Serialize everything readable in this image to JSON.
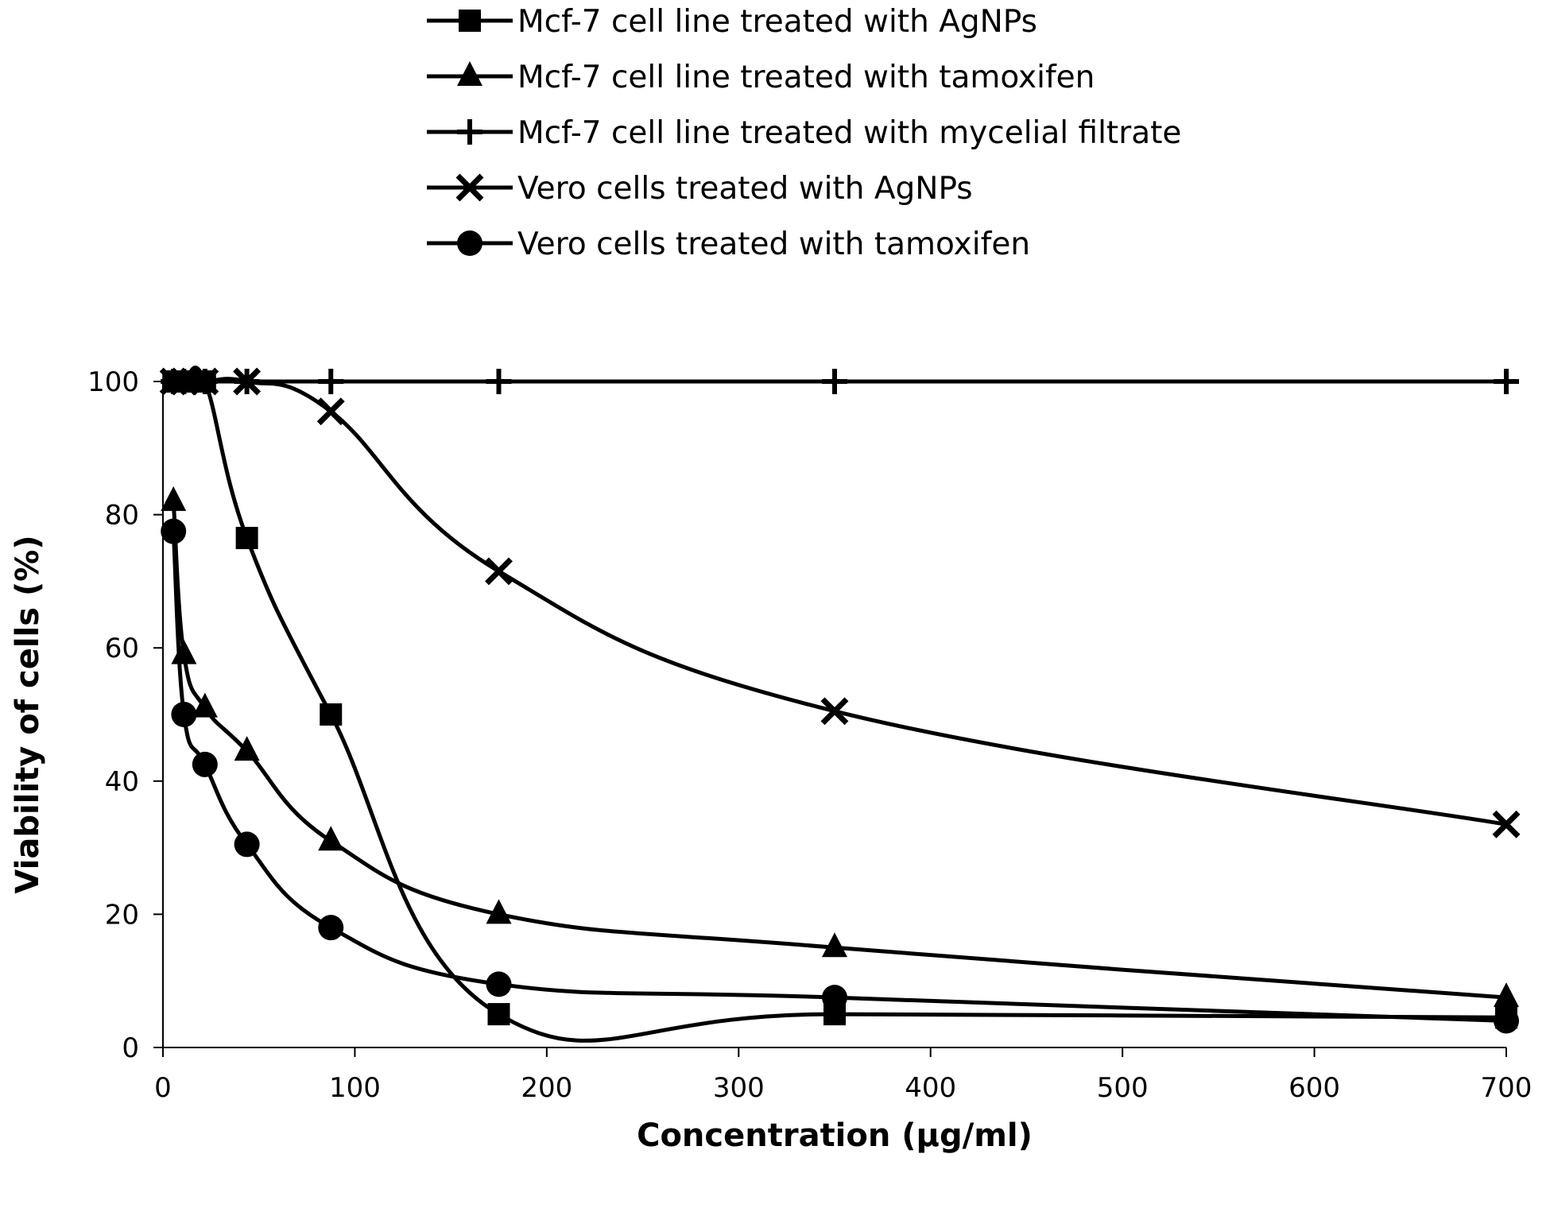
{
  "chart_data": {
    "type": "line",
    "title": "",
    "xlabel": "Concentration (µg/ml)",
    "ylabel": "Viability of cells (%)",
    "xlim": [
      0,
      700
    ],
    "ylim": [
      0,
      100
    ],
    "xticks": [
      0,
      100,
      200,
      300,
      400,
      500,
      600,
      700
    ],
    "yticks": [
      0,
      20,
      40,
      60,
      80,
      100
    ],
    "grid": false,
    "legend_position": "top",
    "series": [
      {
        "name": "Mcf-7 cell line treated with AgNPs",
        "marker": "square",
        "x": [
          5.47,
          10.94,
          21.88,
          43.75,
          87.5,
          175,
          350,
          700
        ],
        "y": [
          100,
          100,
          100,
          76.5,
          50,
          5,
          5,
          4.5
        ]
      },
      {
        "name": "Mcf-7 cell line treated with tamoxifen",
        "marker": "triangle",
        "x": [
          5.47,
          10.94,
          21.88,
          43.75,
          87.5,
          175,
          350,
          700
        ],
        "y": [
          82,
          59,
          51,
          44.5,
          31,
          20,
          15,
          7.5
        ]
      },
      {
        "name": "Mcf-7 cell line treated with mycelial filtrate",
        "marker": "plus",
        "x": [
          5.47,
          10.94,
          21.88,
          43.75,
          87.5,
          175,
          350,
          700
        ],
        "y": [
          100,
          100,
          100,
          100,
          100,
          100,
          100,
          100
        ]
      },
      {
        "name": "Vero cells treated with AgNPs",
        "marker": "x",
        "x": [
          5.47,
          10.94,
          21.88,
          43.75,
          87.5,
          175,
          350,
          700
        ],
        "y": [
          100,
          100,
          100,
          100,
          95.5,
          71.5,
          50.5,
          33.5
        ]
      },
      {
        "name": "Vero cells treated with tamoxifen",
        "marker": "circle",
        "x": [
          5.47,
          10.94,
          21.88,
          43.75,
          87.5,
          175,
          350,
          700
        ],
        "y": [
          77.5,
          50,
          42.5,
          30.5,
          18,
          9.5,
          7.5,
          4
        ]
      }
    ]
  }
}
